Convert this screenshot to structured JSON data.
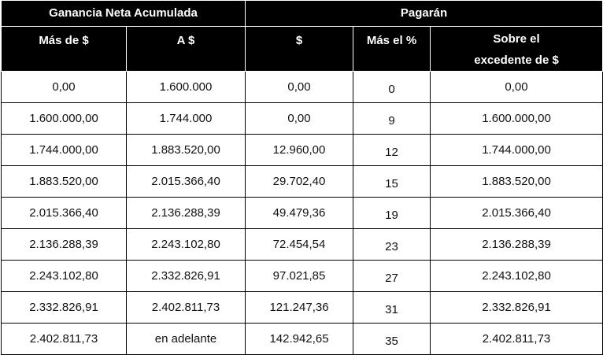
{
  "table": {
    "group_headers": {
      "left": "Ganancia Neta Acumulada",
      "right": "Pagarán"
    },
    "columns": {
      "mas_de": "Más de $",
      "a": "A $",
      "fijo": "$",
      "mas_pct": "Más el %",
      "sobre_line1": "Sobre el",
      "sobre_line2": "excedente de $"
    },
    "rows": [
      [
        "0,00",
        "1.600.000",
        "0,00",
        "0",
        "0,00"
      ],
      [
        "1.600.000,00",
        "1.744.000",
        "0,00",
        "9",
        "1.600.000,00"
      ],
      [
        "1.744.000,00",
        "1.883.520,00",
        "12.960,00",
        "12",
        "1.744.000,00"
      ],
      [
        "1.883.520,00",
        "2.015.366,40",
        "29.702,40",
        "15",
        "1.883.520,00"
      ],
      [
        "2.015.366,40",
        "2.136.288,39",
        "49.479,36",
        "19",
        "2.015.366,40"
      ],
      [
        "2.136.288,39",
        "2.243.102,80",
        "72.454,54",
        "23",
        "2.136.288,39"
      ],
      [
        "2.243.102,80",
        "2.332.826,91",
        "97.021,85",
        "27",
        "2.243.102,80"
      ],
      [
        "2.332.826,91",
        "2.402.811,73",
        "121.247,36",
        "31",
        "2.332.826,91"
      ],
      [
        "2.402.811,73",
        "en adelante",
        "142.942,65",
        "35",
        "2.402.811,73"
      ]
    ]
  }
}
